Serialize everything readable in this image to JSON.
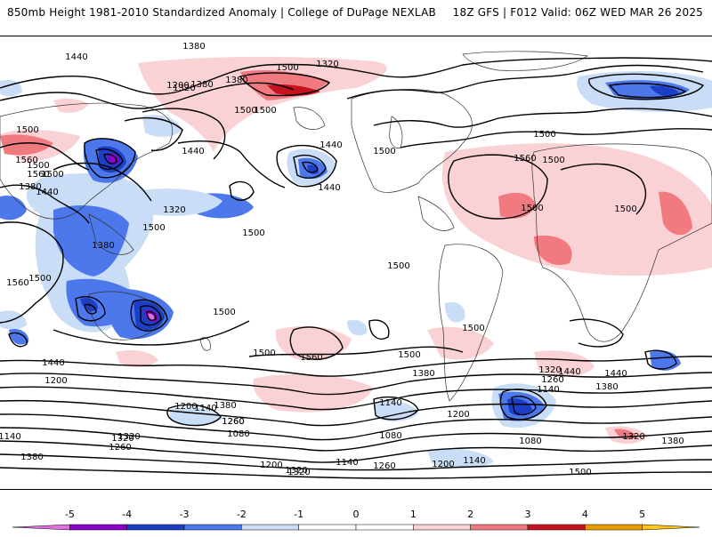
{
  "header": {
    "left_title": "850mb Height 1981-2010 Standardized Anomaly | College of DuPage NEXLAB",
    "right_title": "18Z GFS | F012 Valid: 06Z WED MAR 26 2025"
  },
  "colors": {
    "anom_neg5": "#e070e0",
    "anom_neg4": "#8a00c8",
    "anom_neg3": "#1d3fc6",
    "anom_neg2": "#4c78ec",
    "anom_neg1": "#c9ddf6",
    "anom_zero": "#ffffff",
    "anom_pos1": "#fad2d5",
    "anom_pos2": "#f07a80",
    "anom_pos3": "#c4121f",
    "anom_pos4": "#e89a00",
    "anom_pos5": "#ffc61a"
  },
  "colorbar": {
    "ticks": [
      "-5",
      "-4",
      "-3",
      "-2",
      "-1",
      "0",
      "1",
      "2",
      "3",
      "4",
      "5"
    ]
  },
  "contour_labels": [
    "1440",
    "1500",
    "1380",
    "1320",
    "1500",
    "1500",
    "1440",
    "1200",
    "1320",
    "1380",
    "1380",
    "1440",
    "1500",
    "1560",
    "1500",
    "1440",
    "1380",
    "1500",
    "1440",
    "1560",
    "1500",
    "1380",
    "1320",
    "1500",
    "1560",
    "1500",
    "1440",
    "1500",
    "1500",
    "1500",
    "1440",
    "1500",
    "1560",
    "1500",
    "1500",
    "1500",
    "1560",
    "1500",
    "1380",
    "1440",
    "1260",
    "1320",
    "1380",
    "1200",
    "1140",
    "1200",
    "1320",
    "1140",
    "1080",
    "1260",
    "1320",
    "1200",
    "1140",
    "1260",
    "1200",
    "1320",
    "1380",
    "1440",
    "1320",
    "1260",
    "1140",
    "1080",
    "1380",
    "1140",
    "1260",
    "1200",
    "1320",
    "1380",
    "1080",
    "1140",
    "1500",
    "1500",
    "1500"
  ]
}
